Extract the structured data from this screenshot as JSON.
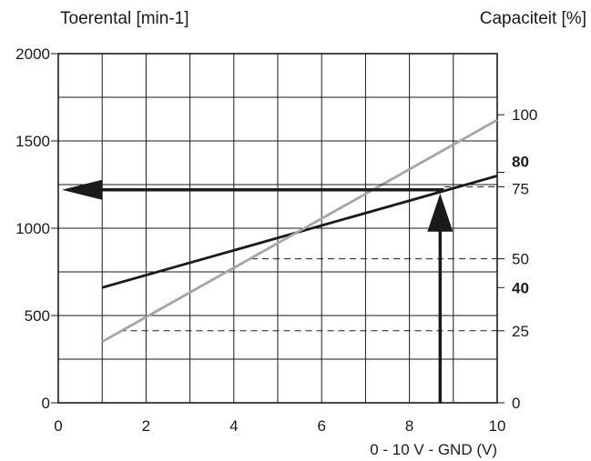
{
  "chart_data": {
    "type": "line",
    "ylabel_left": "Toerental [min-1]",
    "ylabel_right": "Capaciteit [%]",
    "xlabel": "0 - 10 V - GND (V)",
    "xlim": [
      0,
      10
    ],
    "ylim_left": [
      0,
      2000
    ],
    "ylim_right_ticks": [
      0,
      25,
      40,
      50,
      75,
      80,
      100
    ],
    "x_ticks": [
      "0",
      "2",
      "4",
      "6",
      "8",
      "10"
    ],
    "y_ticks_left": [
      "0",
      "500",
      "1000",
      "1500",
      "2000"
    ],
    "right_tick_labels": [
      {
        "label": "0",
        "rpm": 0,
        "bold": false
      },
      {
        "label": "25",
        "rpm": 412.5,
        "bold": false
      },
      {
        "label": "40",
        "rpm": 660,
        "bold": true
      },
      {
        "label": "50",
        "rpm": 825,
        "bold": false
      },
      {
        "label": "75",
        "rpm": 1237.5,
        "bold": false
      },
      {
        "label": "80",
        "rpm": 1320,
        "bold": true
      },
      {
        "label": "100",
        "rpm": 1650,
        "bold": false
      }
    ],
    "grid": true,
    "series": [
      {
        "color": "#1a1a1a",
        "x": [
          1,
          10
        ],
        "y": [
          660,
          1300
        ]
      },
      {
        "color": "#a6a6a6",
        "x": [
          1,
          10
        ],
        "y": [
          350,
          1620
        ]
      }
    ],
    "dashed_levels": [
      {
        "rpm": 412.5,
        "x_from": 1.4
      },
      {
        "rpm": 825,
        "x_from": 4.4
      },
      {
        "rpm": 1237.5,
        "x_from": 8.8
      }
    ],
    "marker": {
      "x": 8.7,
      "rpm": 1220,
      "right_rpm": 1250
    }
  }
}
